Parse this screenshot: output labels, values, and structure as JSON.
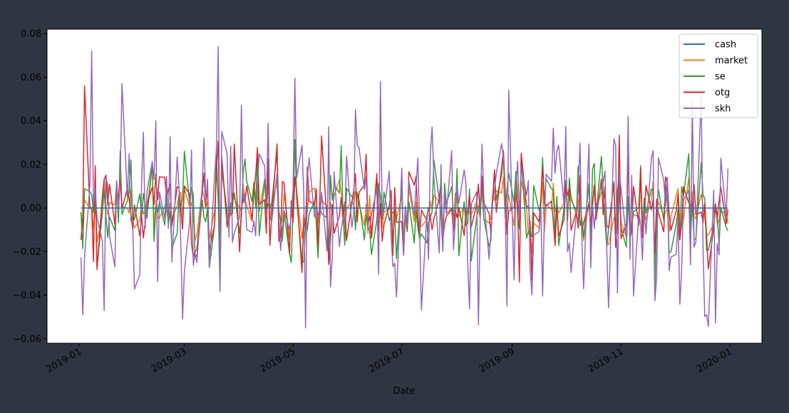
{
  "chart_data": {
    "type": "line",
    "title": "",
    "xlabel": "Date",
    "ylabel": "",
    "x_range": [
      "2019-01-01",
      "2020-01-01"
    ],
    "ylim": [
      -0.062,
      0.082
    ],
    "x_ticks": [
      {
        "date": "2019-01-01",
        "label": "2019-01"
      },
      {
        "date": "2019-03-01",
        "label": "2019-03"
      },
      {
        "date": "2019-05-01",
        "label": "2019-05"
      },
      {
        "date": "2019-07-01",
        "label": "2019-07"
      },
      {
        "date": "2019-09-01",
        "label": "2019-09"
      },
      {
        "date": "2019-11-01",
        "label": "2019-11"
      },
      {
        "date": "2020-01-01",
        "label": "2020-01"
      }
    ],
    "y_ticks": [
      {
        "value": 0.08,
        "label": "0.08"
      },
      {
        "value": 0.06,
        "label": "0.06"
      },
      {
        "value": 0.04,
        "label": "0.04"
      },
      {
        "value": 0.02,
        "label": "0.02"
      },
      {
        "value": 0.0,
        "label": "0.00"
      },
      {
        "value": -0.02,
        "label": "−0.02"
      },
      {
        "value": -0.04,
        "label": "−0.04"
      },
      {
        "value": -0.06,
        "label": "−0.06"
      }
    ],
    "grid": false,
    "legend_position": "top-right",
    "series": [
      {
        "name": "cash",
        "color": "#1f77b4",
        "x": [],
        "y": []
      },
      {
        "name": "market",
        "color": "#ff7f0e",
        "x": [],
        "y": []
      },
      {
        "name": "se",
        "color": "#2ca02c",
        "x": [],
        "y": []
      },
      {
        "name": "otg",
        "color": "#d62728",
        "x": [],
        "y": []
      },
      {
        "name": "skh",
        "color": "#9467bd",
        "x": [],
        "y": []
      }
    ]
  }
}
